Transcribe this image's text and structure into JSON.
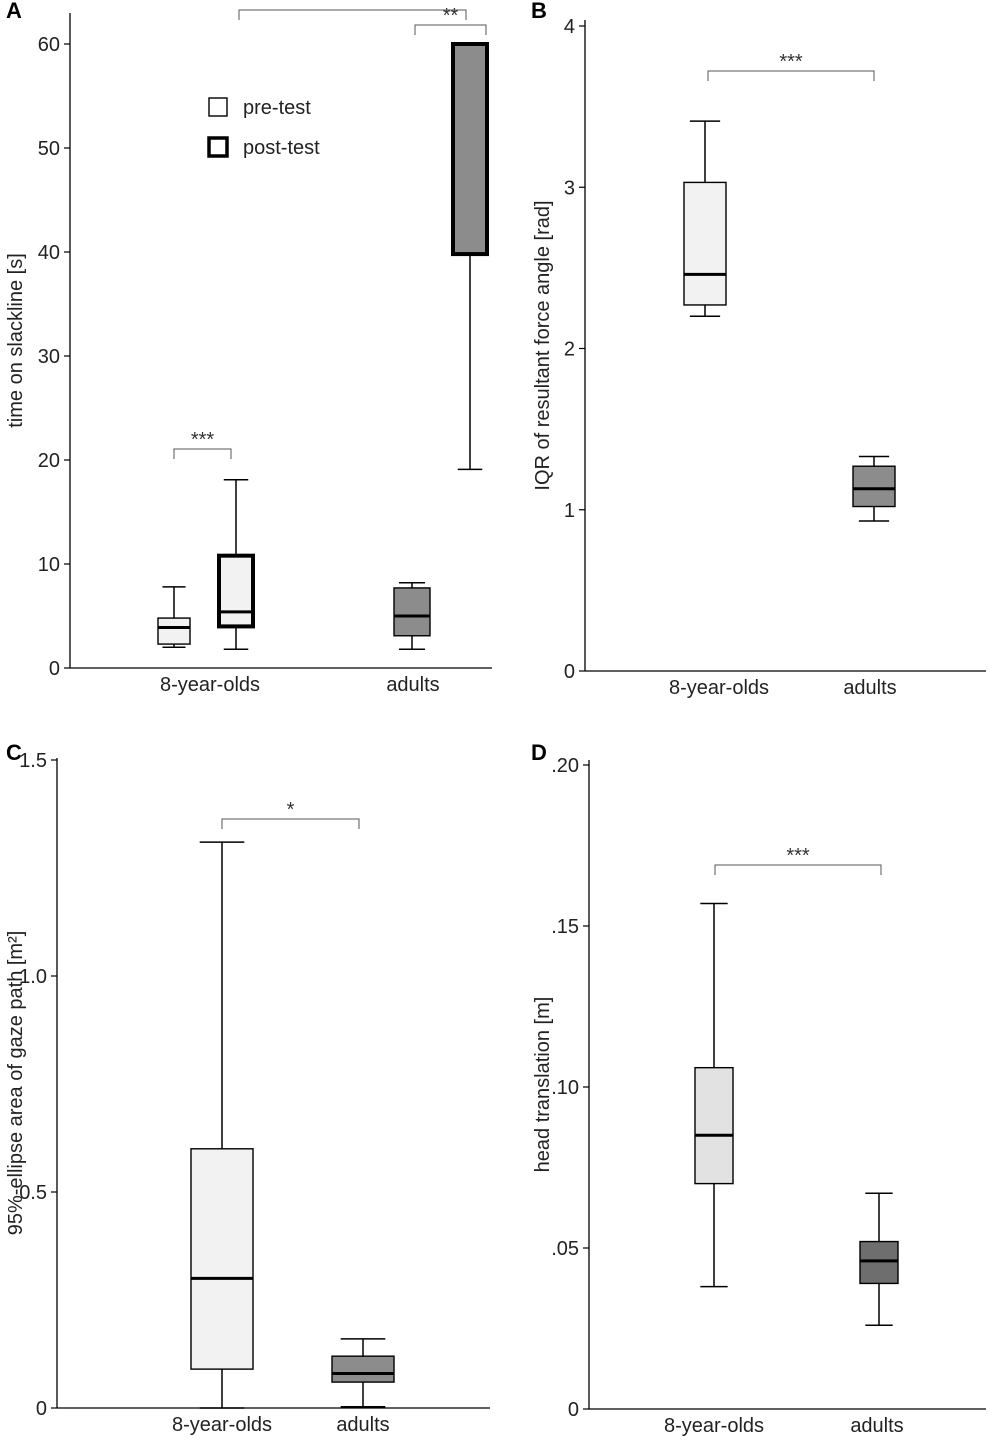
{
  "colors": {
    "light": "#f2f2f2",
    "lightD": "#e2e2e2",
    "dark": "#8c8c8c",
    "darkD": "#6e6e6e",
    "line": "#000000"
  },
  "chart_data": [
    {
      "panel": "A",
      "type": "box",
      "ylabel": "time on slackline [s]",
      "ylim": [
        0,
        63
      ],
      "ticks": [
        0,
        10,
        20,
        30,
        40,
        50,
        60
      ],
      "categories": [
        "8-year-olds",
        "adults"
      ],
      "legend": [
        "pre-test",
        "post-test"
      ],
      "boxes": [
        {
          "group": "8-year-olds",
          "series": "pre-test",
          "min": 2,
          "q1": 2.3,
          "median": 3.9,
          "q3": 4.8,
          "max": 7.8,
          "fill": "light"
        },
        {
          "group": "8-year-olds",
          "series": "post-test",
          "min": 1.8,
          "q1": 4.0,
          "median": 5.4,
          "q3": 10.8,
          "max": 18.1,
          "fill": "light"
        },
        {
          "group": "adults",
          "series": "pre-test",
          "min": 1.8,
          "q1": 3.1,
          "median": 5.0,
          "q3": 7.7,
          "max": 8.2,
          "fill": "dark"
        },
        {
          "group": "adults",
          "series": "post-test",
          "min": 19.1,
          "q1": 39.8,
          "median": 60,
          "q3": 60,
          "max": 60,
          "fill": "dark"
        }
      ],
      "significance": [
        "***",
        "**",
        "***"
      ]
    },
    {
      "panel": "B",
      "type": "box",
      "ylabel": "IQR of resultant force angle [rad]",
      "ylim": [
        0,
        4
      ],
      "ticks": [
        "0",
        "1",
        "2",
        "3",
        "4"
      ],
      "categories": [
        "8-year-olds",
        "adults"
      ],
      "boxes": [
        {
          "group": "8-year-olds",
          "min": 2.2,
          "q1": 2.27,
          "median": 2.46,
          "q3": 3.03,
          "max": 3.41,
          "fill": "light"
        },
        {
          "group": "adults",
          "min": 0.93,
          "q1": 1.02,
          "median": 1.13,
          "q3": 1.27,
          "max": 1.33,
          "fill": "dark"
        }
      ],
      "significance": [
        "***"
      ]
    },
    {
      "panel": "C",
      "type": "box",
      "ylabel": "95%-ellipse area of gaze path [m²]",
      "ylim": [
        0,
        1.5
      ],
      "ticks": [
        "0",
        "0.5",
        "1.0",
        "1.5"
      ],
      "categories": [
        "8-year-olds",
        "adults"
      ],
      "boxes": [
        {
          "group": "8-year-olds",
          "min": 0.0,
          "q1": 0.09,
          "median": 0.3,
          "q3": 0.6,
          "max": 1.31,
          "fill": "light"
        },
        {
          "group": "adults",
          "min": 0.003,
          "q1": 0.06,
          "median": 0.08,
          "q3": 0.12,
          "max": 0.16,
          "fill": "dark"
        }
      ],
      "significance": [
        "*"
      ]
    },
    {
      "panel": "D",
      "type": "box",
      "ylabel": "head translation [m]",
      "ylim": [
        0,
        0.2
      ],
      "ticks": [
        "0",
        ".05",
        ".10",
        ".15",
        ".20"
      ],
      "categories": [
        "8-year-olds",
        "adults"
      ],
      "boxes": [
        {
          "group": "8-year-olds",
          "min": 0.038,
          "q1": 0.07,
          "median": 0.085,
          "q3": 0.106,
          "max": 0.157,
          "fill": "lightD"
        },
        {
          "group": "adults",
          "min": 0.026,
          "q1": 0.039,
          "median": 0.046,
          "q3": 0.052,
          "max": 0.067,
          "fill": "darkD"
        }
      ],
      "significance": [
        "***"
      ]
    }
  ]
}
